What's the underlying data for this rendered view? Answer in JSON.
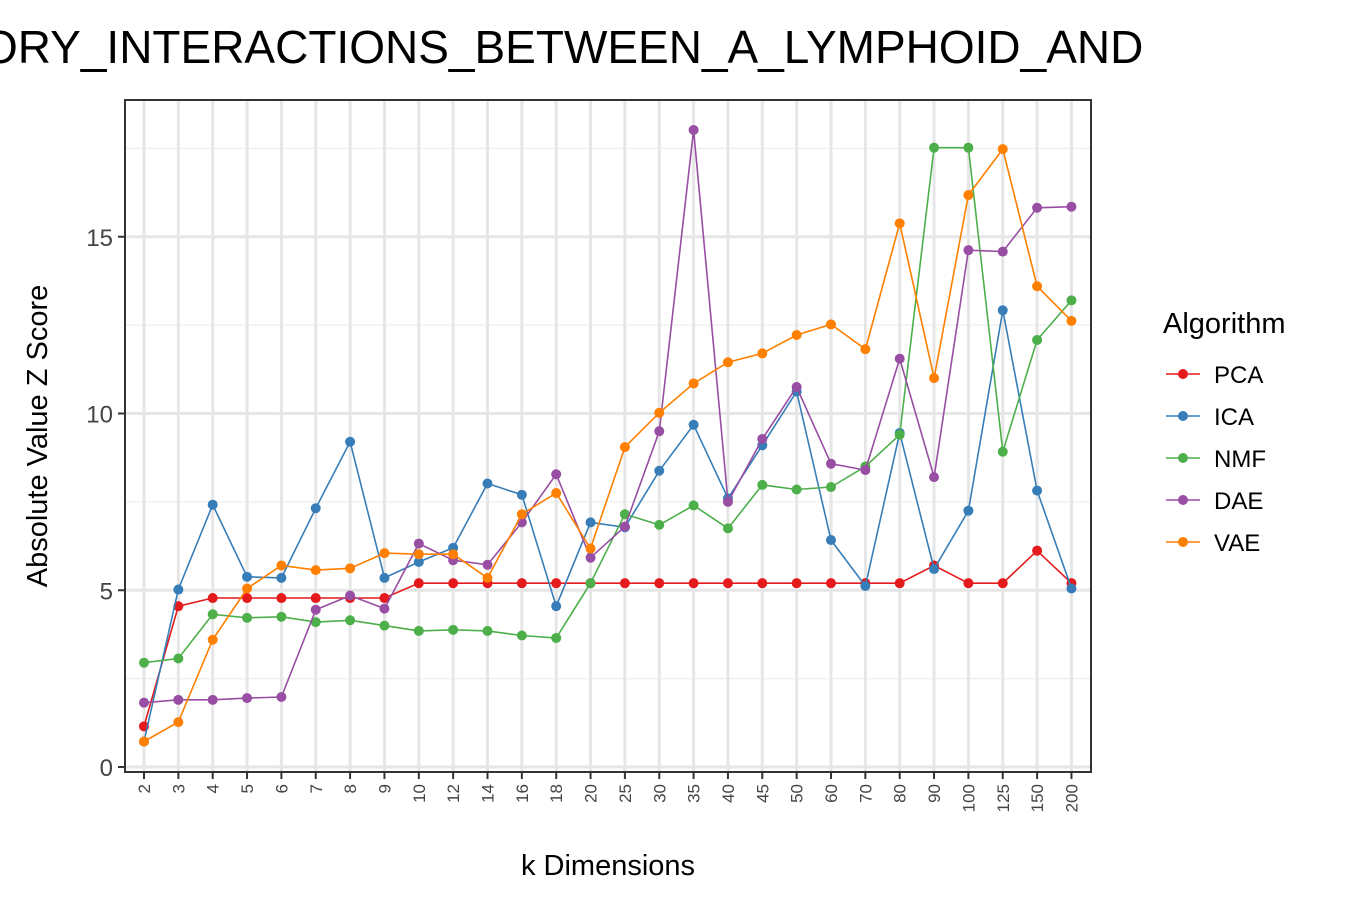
{
  "chart_data": {
    "type": "line",
    "title": "ORY_INTERACTIONS_BETWEEN_A_LYMPHOID_AND",
    "xlabel": "k Dimensions",
    "ylabel": "Absolute Value Z Score",
    "ylim": [
      -0.2,
      18.8
    ],
    "yticks": [
      0,
      5,
      10,
      15
    ],
    "grid": true,
    "legend_position": "right",
    "legend_title": "Algorithm",
    "categories": [
      "2",
      "3",
      "4",
      "5",
      "6",
      "7",
      "8",
      "9",
      "10",
      "12",
      "14",
      "16",
      "18",
      "20",
      "25",
      "30",
      "35",
      "40",
      "45",
      "50",
      "60",
      "70",
      "80",
      "90",
      "100",
      "125",
      "150",
      "200"
    ],
    "series": [
      {
        "name": "PCA",
        "color": "#E41A1C",
        "values": [
          1.15,
          4.55,
          4.78,
          4.78,
          4.78,
          4.78,
          4.78,
          4.78,
          5.2,
          5.2,
          5.2,
          5.2,
          5.2,
          5.2,
          5.2,
          5.2,
          5.2,
          5.2,
          5.2,
          5.2,
          5.2,
          5.2,
          5.2,
          5.7,
          5.2,
          5.2,
          6.12,
          5.2
        ]
      },
      {
        "name": "ICA",
        "color": "#377EB8",
        "values": [
          0.72,
          5.02,
          7.42,
          5.38,
          5.35,
          7.32,
          9.2,
          5.35,
          5.8,
          6.2,
          8.02,
          7.7,
          4.55,
          6.92,
          6.78,
          8.38,
          9.68,
          7.6,
          9.1,
          10.62,
          6.42,
          5.12,
          9.45,
          5.6,
          7.25,
          12.92,
          7.82,
          5.05
        ]
      },
      {
        "name": "NMF",
        "color": "#4DAF4A",
        "values": [
          2.95,
          3.07,
          4.32,
          4.22,
          4.25,
          4.1,
          4.15,
          4.0,
          3.85,
          3.88,
          3.85,
          3.72,
          3.65,
          5.2,
          7.15,
          6.85,
          7.4,
          6.75,
          7.98,
          7.85,
          7.92,
          8.5,
          9.4,
          17.52,
          17.52,
          8.92,
          12.08,
          13.2
        ]
      },
      {
        "name": "DAE",
        "color": "#984EA3",
        "values": [
          1.82,
          1.9,
          1.9,
          1.95,
          1.98,
          4.45,
          4.85,
          4.48,
          6.32,
          5.85,
          5.72,
          6.92,
          8.28,
          5.92,
          6.8,
          9.5,
          18.02,
          7.5,
          9.28,
          10.75,
          8.58,
          8.4,
          11.55,
          8.2,
          14.62,
          14.58,
          15.82,
          15.85
        ]
      },
      {
        "name": "VAE",
        "color": "#FF7F00",
        "values": [
          0.72,
          1.27,
          3.6,
          5.05,
          5.7,
          5.57,
          5.62,
          6.05,
          6.02,
          6.02,
          5.35,
          7.15,
          7.75,
          6.18,
          9.05,
          10.02,
          10.85,
          11.45,
          11.7,
          12.22,
          12.52,
          11.82,
          15.38,
          11.0,
          16.18,
          17.48,
          13.6,
          12.62
        ]
      }
    ]
  }
}
